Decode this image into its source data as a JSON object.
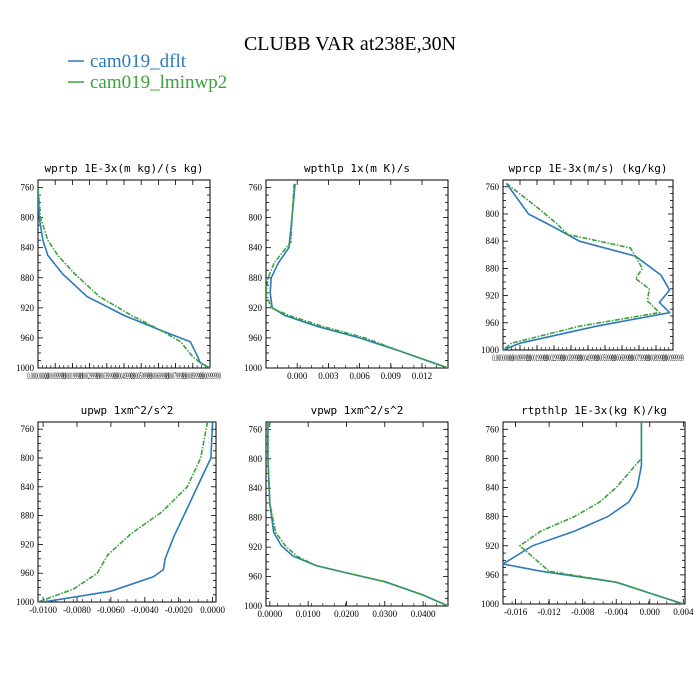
{
  "figure_title": "CLUBB VAR at238E,30N",
  "legend": [
    {
      "label": "cam019_dflt",
      "color": "#2b7bb9"
    },
    {
      "label": "cam019_lminwp2",
      "color": "#3aa33a",
      "dashed": true
    }
  ],
  "chart_data": [
    {
      "type": "line",
      "title": "wprtp  1E-3x(m kg)/(s kg)",
      "xlim": [
        0,
        0.07
      ],
      "xticks_text": [
        "0.00000000",
        "0.0000999999",
        "0.000199999",
        "0.000299999",
        "0.000399999",
        "0.000499999",
        "0.000599999",
        "0.000699999",
        "0.000799999",
        "0.000899999",
        "0.000999990"
      ],
      "ylim": [
        750,
        1000
      ],
      "yticks": [
        760,
        800,
        840,
        880,
        920,
        960,
        1000
      ],
      "series": [
        {
          "name": "cam019_dflt",
          "x": [
            0.0,
            0.0005,
            0.002,
            0.004,
            0.01,
            0.02,
            0.035,
            0.05,
            0.062,
            0.065,
            0.066,
            0.07
          ],
          "y": [
            760,
            800,
            830,
            850,
            875,
            905,
            930,
            950,
            965,
            985,
            993,
            1000
          ]
        },
        {
          "name": "cam019_lminwp2",
          "x": [
            0.0,
            0.001,
            0.004,
            0.008,
            0.015,
            0.025,
            0.038,
            0.05,
            0.058,
            0.063,
            0.066,
            0.07
          ],
          "y": [
            760,
            800,
            830,
            850,
            875,
            905,
            930,
            950,
            965,
            985,
            993,
            1000
          ]
        }
      ]
    },
    {
      "type": "line",
      "title": "wpthlp  1x(m K)/s",
      "xlim": [
        -0.003,
        0.0145
      ],
      "xticks": [
        0.0,
        0.003,
        0.006,
        0.009,
        0.012
      ],
      "xticks_text": [
        "0.000",
        "0.003",
        "0.006",
        "0.009",
        "0.012"
      ],
      "ylim": [
        750,
        1000
      ],
      "yticks": [
        760,
        800,
        840,
        880,
        920,
        960,
        1000
      ],
      "series": [
        {
          "name": "cam019_dflt",
          "x": [
            -0.0002,
            -0.0005,
            -0.0008,
            -0.0018,
            -0.0025,
            -0.0026,
            -0.0024,
            -0.0012,
            0.002,
            0.006,
            0.01,
            0.0145
          ],
          "y": [
            755,
            800,
            840,
            860,
            880,
            900,
            920,
            930,
            945,
            960,
            978,
            1000
          ]
        },
        {
          "name": "cam019_lminwp2",
          "x": [
            -0.0003,
            -0.0005,
            -0.0006,
            -0.0022,
            -0.0028,
            -0.003,
            -0.0025,
            -0.0008,
            0.0025,
            0.0065,
            0.01,
            0.0145
          ],
          "y": [
            755,
            800,
            832,
            860,
            880,
            900,
            920,
            930,
            945,
            960,
            978,
            1000
          ]
        }
      ]
    },
    {
      "type": "line",
      "title": "wprcp  1E-3x(m/s) (kg/kg)",
      "xlim": [
        0,
        1
      ],
      "xticks_text": [
        "0.00000000",
        "0.0000999999",
        "0.000199999",
        "0.000299999",
        "0.000399999",
        "0.000499999",
        "0.000599999",
        "0.000699999",
        "0.000799999",
        "0.000899999",
        "0.000999999"
      ],
      "ylim": [
        750,
        1000
      ],
      "yticks": [
        760,
        800,
        840,
        880,
        920,
        960,
        1000
      ],
      "series": [
        {
          "name": "cam019_dflt",
          "x": [
            0.02,
            0.15,
            0.32,
            0.45,
            0.78,
            0.93,
            0.98,
            0.92,
            0.98,
            0.55,
            0.1,
            0.0
          ],
          "y": [
            755,
            800,
            822,
            840,
            862,
            890,
            912,
            930,
            945,
            965,
            990,
            1000
          ]
        },
        {
          "name": "cam019_lminwp2",
          "x": [
            0.02,
            0.2,
            0.32,
            0.38,
            0.75,
            0.82,
            0.78,
            0.86,
            0.85,
            0.92,
            0.45,
            0.05,
            0.0
          ],
          "y": [
            755,
            790,
            815,
            830,
            850,
            880,
            895,
            910,
            928,
            945,
            965,
            990,
            1000
          ]
        }
      ]
    },
    {
      "type": "line",
      "title": "upwp  1xm^2/s^2",
      "xlim": [
        -0.0103,
        0.0002
      ],
      "xticks": [
        -0.01,
        -0.008,
        -0.006,
        -0.004,
        -0.002,
        0.0
      ],
      "xticks_text": [
        "-0.0100",
        "-0.0080",
        "-0.0060",
        "-0.0040",
        "-0.0020",
        "0.0000"
      ],
      "ylim": [
        750,
        1000
      ],
      "yticks": [
        760,
        800,
        840,
        880,
        920,
        960,
        1000
      ],
      "series": [
        {
          "name": "cam019_dflt",
          "x": [
            0.0,
            -0.0001,
            -0.0007,
            -0.0015,
            -0.0023,
            -0.0028,
            -0.0029,
            -0.0035,
            -0.006,
            -0.01
          ],
          "y": [
            750,
            800,
            830,
            870,
            910,
            940,
            955,
            965,
            985,
            1000
          ]
        },
        {
          "name": "cam019_lminwp2",
          "x": [
            -0.0003,
            -0.0007,
            -0.0015,
            -0.003,
            -0.0048,
            -0.0062,
            -0.0068,
            -0.0082,
            -0.0103
          ],
          "y": [
            750,
            800,
            840,
            875,
            905,
            935,
            960,
            982,
            1000
          ]
        }
      ]
    },
    {
      "type": "line",
      "title": "vpwp  1xm^2/s^2",
      "xlim": [
        -0.001,
        0.0465
      ],
      "xticks": [
        0.0,
        0.01,
        0.02,
        0.03,
        0.04
      ],
      "xticks_text": [
        "0.0000",
        "0.0100",
        "0.0200",
        "0.0300",
        "0.0400"
      ],
      "ylim": [
        750,
        1000
      ],
      "yticks": [
        760,
        800,
        840,
        880,
        920,
        960,
        1000
      ],
      "series": [
        {
          "name": "cam019_dflt",
          "x": [
            -0.0005,
            -0.0005,
            0.0,
            0.001,
            0.003,
            0.006,
            0.012,
            0.02,
            0.03,
            0.04,
            0.0465
          ],
          "y": [
            750,
            800,
            860,
            900,
            918,
            932,
            945,
            955,
            967,
            985,
            1000
          ]
        },
        {
          "name": "cam019_lminwp2",
          "x": [
            -0.0005,
            -0.0005,
            0.0,
            0.0015,
            0.004,
            0.007,
            0.012,
            0.02,
            0.03,
            0.04,
            0.0465
          ],
          "y": [
            750,
            800,
            860,
            900,
            918,
            932,
            945,
            955,
            967,
            985,
            1000
          ]
        }
      ]
    },
    {
      "type": "line",
      "title": "rtpthlp  1E-3x(kg K)/kg",
      "xlim": [
        -0.0175,
        0.0042
      ],
      "xticks": [
        -0.016,
        -0.012,
        -0.008,
        -0.004,
        0.0,
        0.004
      ],
      "xticks_text": [
        "-0.016",
        "-0.012",
        "-0.008",
        "-0.004",
        "0.000",
        "0.004"
      ],
      "ylim": [
        750,
        1000
      ],
      "yticks": [
        760,
        800,
        840,
        880,
        920,
        960,
        1000
      ],
      "series": [
        {
          "name": "cam019_dflt",
          "x": [
            -0.001,
            -0.001,
            -0.0015,
            -0.0025,
            -0.005,
            -0.009,
            -0.014,
            -0.0175,
            -0.013,
            -0.004,
            0.004
          ],
          "y": [
            750,
            810,
            840,
            860,
            880,
            900,
            920,
            945,
            955,
            970,
            1000
          ]
        },
        {
          "name": "cam019_lminwp2",
          "x": [
            -0.001,
            -0.001,
            -0.0025,
            -0.004,
            -0.006,
            -0.009,
            -0.013,
            -0.0155,
            -0.014,
            -0.012,
            -0.004,
            0.004
          ],
          "y": [
            750,
            800,
            820,
            840,
            860,
            880,
            900,
            920,
            935,
            955,
            970,
            1000
          ]
        }
      ]
    }
  ]
}
